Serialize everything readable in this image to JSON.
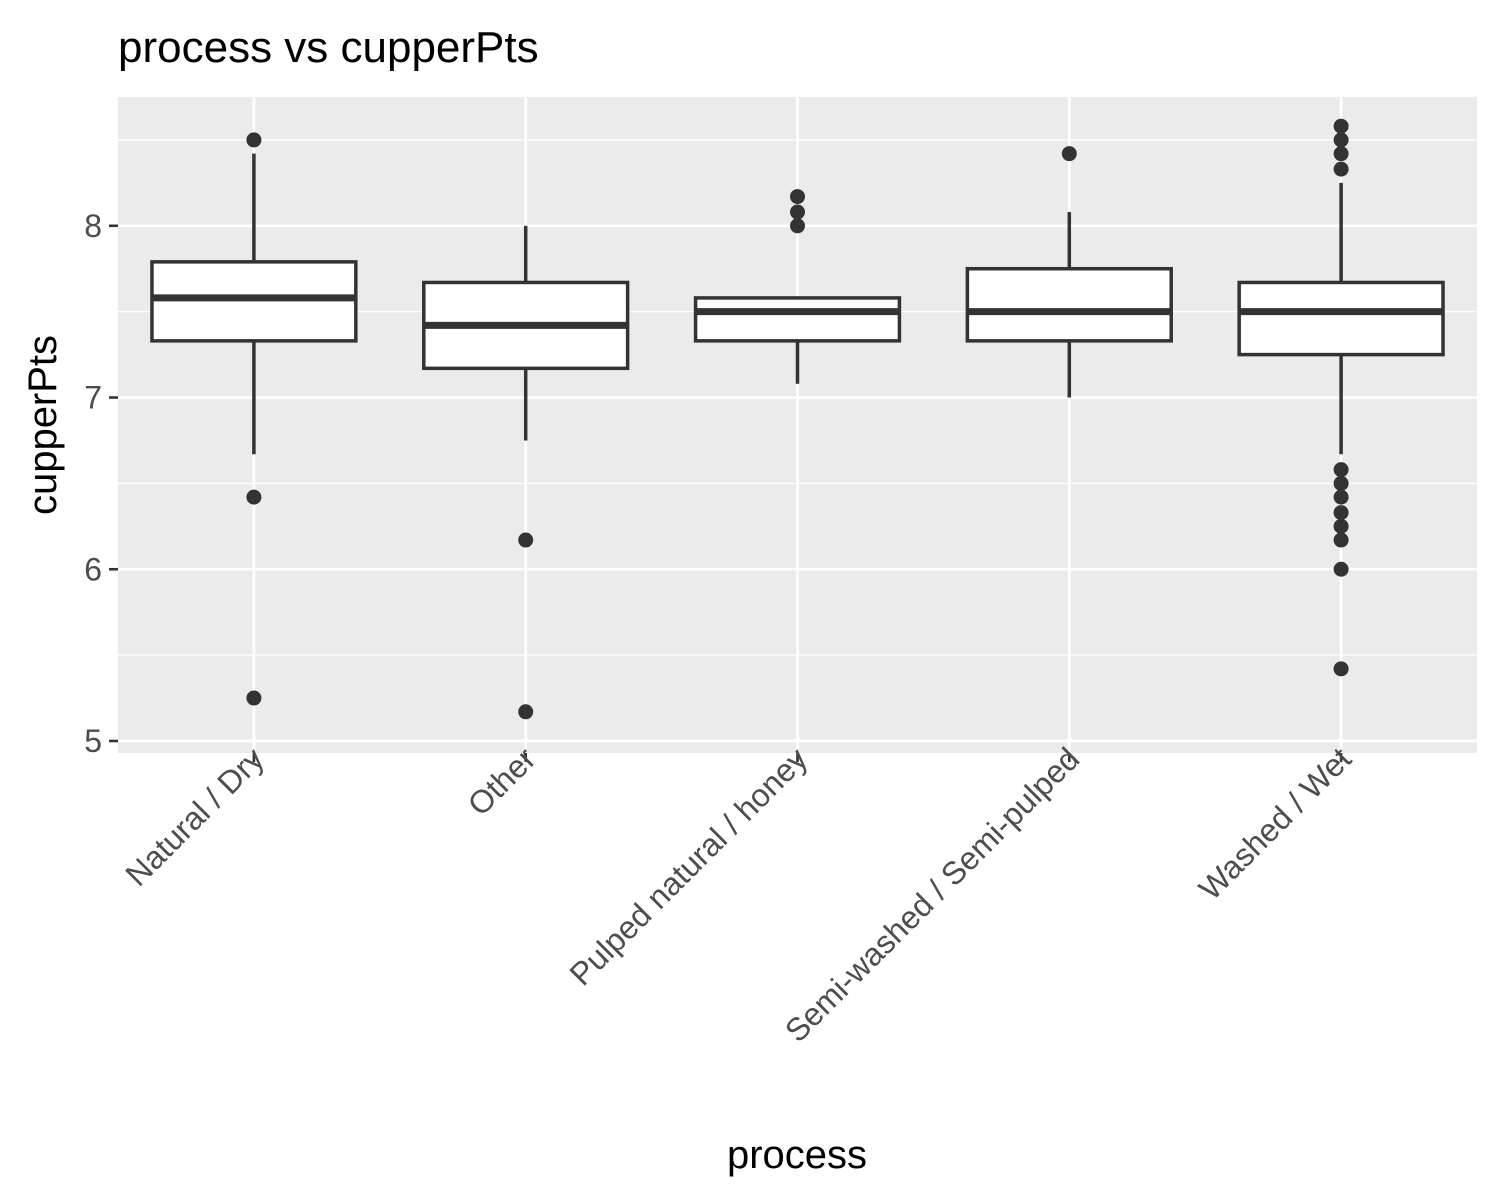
{
  "chart_data": {
    "type": "boxplot",
    "title": "process vs cupperPts",
    "xlabel": "process",
    "ylabel": "cupperPts",
    "ylim": [
      4.93,
      8.75
    ],
    "yticks": [
      5,
      6,
      7,
      8
    ],
    "grid": true,
    "legend": "none",
    "colors": {
      "panel": "#ebebeb",
      "grid": "#ffffff",
      "box_fill": "#ffffff",
      "box_stroke": "#333333",
      "tick_text": "#4d4d4d"
    },
    "categories": [
      "Natural / Dry",
      "Other",
      "Pulped natural / honey",
      "Semi-washed / Semi-pulped",
      "Washed / Wet"
    ],
    "boxes": [
      {
        "category": "Natural / Dry",
        "whisker_low": 6.67,
        "q1": 7.33,
        "median": 7.58,
        "q3": 7.79,
        "whisker_high": 8.42,
        "outliers": [
          8.5,
          6.42,
          5.25
        ]
      },
      {
        "category": "Other",
        "whisker_low": 6.75,
        "q1": 7.17,
        "median": 7.42,
        "q3": 7.67,
        "whisker_high": 8.0,
        "outliers": [
          6.17,
          5.17
        ]
      },
      {
        "category": "Pulped natural / honey",
        "whisker_low": 7.08,
        "q1": 7.33,
        "median": 7.5,
        "q3": 7.58,
        "whisker_high": 7.58,
        "outliers": [
          8.17,
          8.08,
          8.0
        ]
      },
      {
        "category": "Semi-washed / Semi-pulped",
        "whisker_low": 7.0,
        "q1": 7.33,
        "median": 7.5,
        "q3": 7.75,
        "whisker_high": 8.08,
        "outliers": [
          8.42
        ]
      },
      {
        "category": "Washed / Wet",
        "whisker_low": 6.67,
        "q1": 7.25,
        "median": 7.5,
        "q3": 7.67,
        "whisker_high": 8.25,
        "outliers": [
          8.58,
          8.5,
          8.42,
          8.33,
          6.58,
          6.5,
          6.42,
          6.33,
          6.25,
          6.17,
          6.0,
          5.42
        ]
      }
    ]
  }
}
